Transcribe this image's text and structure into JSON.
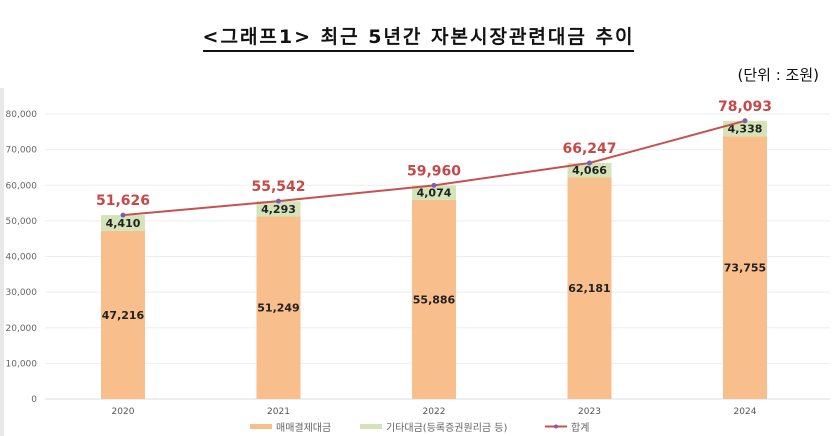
{
  "chart_data": {
    "type": "bar",
    "stacked": true,
    "title": "<그래프1> 최근 5년간 자본시장관련대금 추이",
    "unit": "(단위 : 조원)",
    "categories": [
      "2020",
      "2021",
      "2022",
      "2023",
      "2024"
    ],
    "series": [
      {
        "name": "매매결제대금",
        "type": "bar",
        "color": "#f8be8c",
        "values": [
          47216,
          51249,
          55886,
          62181,
          73755
        ],
        "labels": [
          "47,216",
          "51,249",
          "55,886",
          "62,181",
          "73,755"
        ]
      },
      {
        "name": "기타대금(등록증권원리금 등)",
        "type": "bar",
        "color": "#d5e4b8",
        "values": [
          4410,
          4293,
          4074,
          4066,
          4338
        ],
        "labels": [
          "4,410",
          "4,293",
          "4,074",
          "4,066",
          "4,338"
        ]
      },
      {
        "name": "합계",
        "type": "line",
        "color": "#c85050",
        "marker_color": "#7b5fb0",
        "values": [
          51626,
          55542,
          59960,
          66247,
          78093
        ],
        "labels": [
          "51,626",
          "55,542",
          "59,960",
          "66,247",
          "78,093"
        ]
      }
    ],
    "ylim": [
      0,
      80000
    ],
    "yticks": [
      0,
      10000,
      20000,
      30000,
      40000,
      50000,
      60000,
      70000,
      80000
    ],
    "ytick_labels": [
      "0",
      "10,000",
      "20,000",
      "30,000",
      "40,000",
      "50,000",
      "60,000",
      "70,000",
      "80,000"
    ],
    "grid": true,
    "legend": "bottom",
    "xlabel": "",
    "ylabel": ""
  }
}
